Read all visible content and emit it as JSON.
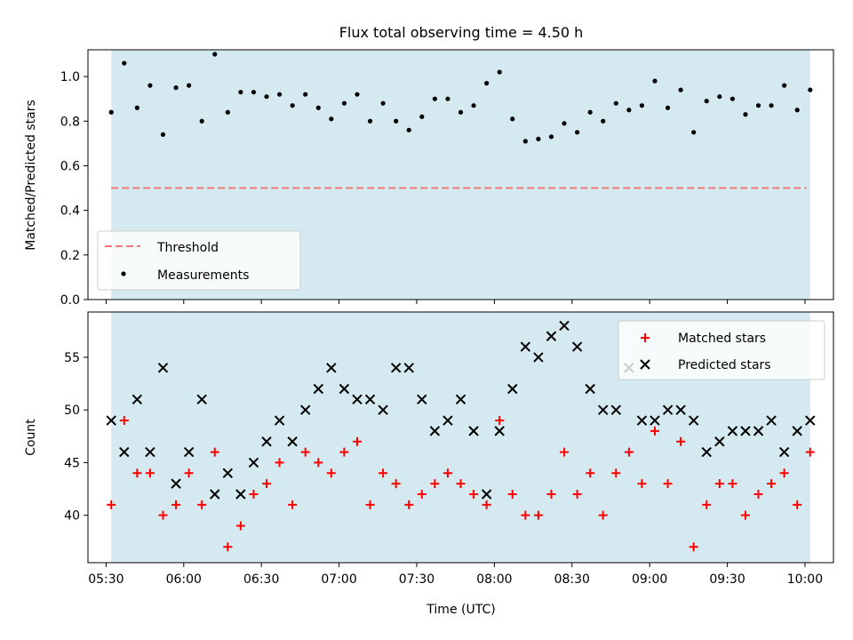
{
  "figure": {
    "title": "Flux total observing time = 4.50 h",
    "xlabel": "Time (UTC)",
    "x_ticks": [
      "05:30",
      "06:00",
      "06:30",
      "07:00",
      "07:30",
      "08:00",
      "08:30",
      "09:00",
      "09:30",
      "10:00"
    ]
  },
  "colors": {
    "shade": "#d4eaf0",
    "threshold": "#f07878",
    "measurement": "#000000",
    "matched": "#ff0000",
    "predicted": "#000000"
  },
  "chart_data": [
    {
      "type": "scatter",
      "ylabel": "Matched/Predicted stars",
      "ylim": [
        0,
        1.12
      ],
      "yticks": [
        "0.0",
        "0.2",
        "0.4",
        "0.6",
        "0.8",
        "1.0"
      ],
      "xlim": [
        "05:23",
        "10:11"
      ],
      "shaded_span": [
        "05:32",
        "10:02"
      ],
      "threshold": {
        "name": "Threshold",
        "value": 0.5
      },
      "legend": {
        "placement": "lower-left",
        "entries": [
          "Threshold",
          "Measurements"
        ]
      },
      "series": [
        {
          "name": "Measurements",
          "x": [
            "05:32",
            "05:37",
            "05:42",
            "05:47",
            "05:52",
            "05:57",
            "06:02",
            "06:07",
            "06:12",
            "06:17",
            "06:22",
            "06:27",
            "06:32",
            "06:37",
            "06:42",
            "06:47",
            "06:52",
            "06:57",
            "07:02",
            "07:07",
            "07:12",
            "07:17",
            "07:22",
            "07:27",
            "07:32",
            "07:37",
            "07:42",
            "07:47",
            "07:52",
            "07:57",
            "08:02",
            "08:07",
            "08:12",
            "08:17",
            "08:22",
            "08:27",
            "08:32",
            "08:37",
            "08:42",
            "08:47",
            "08:52",
            "08:57",
            "09:02",
            "09:07",
            "09:12",
            "09:17",
            "09:22",
            "09:27",
            "09:32",
            "09:37",
            "09:42",
            "09:47",
            "09:52",
            "09:57",
            "10:02"
          ],
          "y": [
            0.84,
            1.06,
            0.86,
            0.96,
            0.74,
            0.95,
            0.96,
            0.8,
            1.1,
            0.84,
            0.93,
            0.93,
            0.91,
            0.92,
            0.87,
            0.92,
            0.86,
            0.81,
            0.88,
            0.92,
            0.8,
            0.88,
            0.8,
            0.76,
            0.82,
            0.9,
            0.9,
            0.84,
            0.87,
            0.97,
            1.02,
            0.81,
            0.71,
            0.72,
            0.73,
            0.79,
            0.75,
            0.84,
            0.8,
            0.88,
            0.85,
            0.87,
            0.98,
            0.86,
            0.94,
            0.75,
            0.89,
            0.91,
            0.9,
            0.83,
            0.87,
            0.87,
            0.96,
            0.85,
            0.94
          ]
        }
      ]
    },
    {
      "type": "scatter",
      "ylabel": "Count",
      "ylim": [
        35.5,
        59.3
      ],
      "yticks": [
        "40",
        "45",
        "50",
        "55"
      ],
      "xlim": [
        "05:23",
        "10:11"
      ],
      "shaded_span": [
        "05:32",
        "10:02"
      ],
      "legend": {
        "placement": "top-right",
        "entries": [
          "Matched stars",
          "Predicted stars"
        ]
      },
      "series": [
        {
          "name": "Matched stars",
          "marker": "+",
          "x": [
            "05:32",
            "05:37",
            "05:42",
            "05:47",
            "05:52",
            "05:57",
            "06:02",
            "06:07",
            "06:12",
            "06:17",
            "06:22",
            "06:27",
            "06:32",
            "06:37",
            "06:42",
            "06:47",
            "06:52",
            "06:57",
            "07:02",
            "07:07",
            "07:12",
            "07:17",
            "07:22",
            "07:27",
            "07:32",
            "07:37",
            "07:42",
            "07:47",
            "07:52",
            "07:57",
            "08:02",
            "08:07",
            "08:12",
            "08:17",
            "08:22",
            "08:27",
            "08:32",
            "08:37",
            "08:42",
            "08:47",
            "08:52",
            "08:57",
            "09:02",
            "09:07",
            "09:12",
            "09:17",
            "09:22",
            "09:27",
            "09:32",
            "09:37",
            "09:42",
            "09:47",
            "09:52",
            "09:57",
            "10:02"
          ],
          "y": [
            41,
            49,
            44,
            44,
            40,
            41,
            44,
            41,
            46,
            37,
            39,
            42,
            43,
            45,
            41,
            46,
            45,
            44,
            46,
            47,
            41,
            44,
            43,
            41,
            42,
            43,
            44,
            43,
            42,
            41,
            49,
            42,
            40,
            40,
            42,
            46,
            42,
            44,
            40,
            44,
            46,
            43,
            48,
            43,
            47,
            37,
            41,
            43,
            43,
            40,
            42,
            43,
            44,
            41,
            46
          ]
        },
        {
          "name": "Predicted stars",
          "marker": "x",
          "x": [
            "05:32",
            "05:37",
            "05:42",
            "05:47",
            "05:52",
            "05:57",
            "06:02",
            "06:07",
            "06:12",
            "06:17",
            "06:22",
            "06:27",
            "06:32",
            "06:37",
            "06:42",
            "06:47",
            "06:52",
            "06:57",
            "07:02",
            "07:07",
            "07:12",
            "07:17",
            "07:22",
            "07:27",
            "07:32",
            "07:37",
            "07:42",
            "07:47",
            "07:52",
            "07:57",
            "08:02",
            "08:07",
            "08:12",
            "08:17",
            "08:22",
            "08:27",
            "08:32",
            "08:37",
            "08:42",
            "08:47",
            "08:52",
            "08:57",
            "09:02",
            "09:07",
            "09:12",
            "09:17",
            "09:22",
            "09:27",
            "09:32",
            "09:37",
            "09:42",
            "09:47",
            "09:52",
            "09:57",
            "10:02"
          ],
          "y": [
            49,
            46,
            51,
            46,
            54,
            43,
            46,
            51,
            42,
            44,
            42,
            45,
            47,
            49,
            47,
            50,
            52,
            54,
            52,
            51,
            51,
            50,
            54,
            54,
            51,
            48,
            49,
            51,
            48,
            42,
            48,
            52,
            56,
            55,
            57,
            58,
            56,
            52,
            50,
            50,
            54,
            49,
            49,
            50,
            50,
            49,
            46,
            47,
            48,
            48,
            48,
            49,
            46,
            48,
            49
          ]
        }
      ]
    }
  ]
}
